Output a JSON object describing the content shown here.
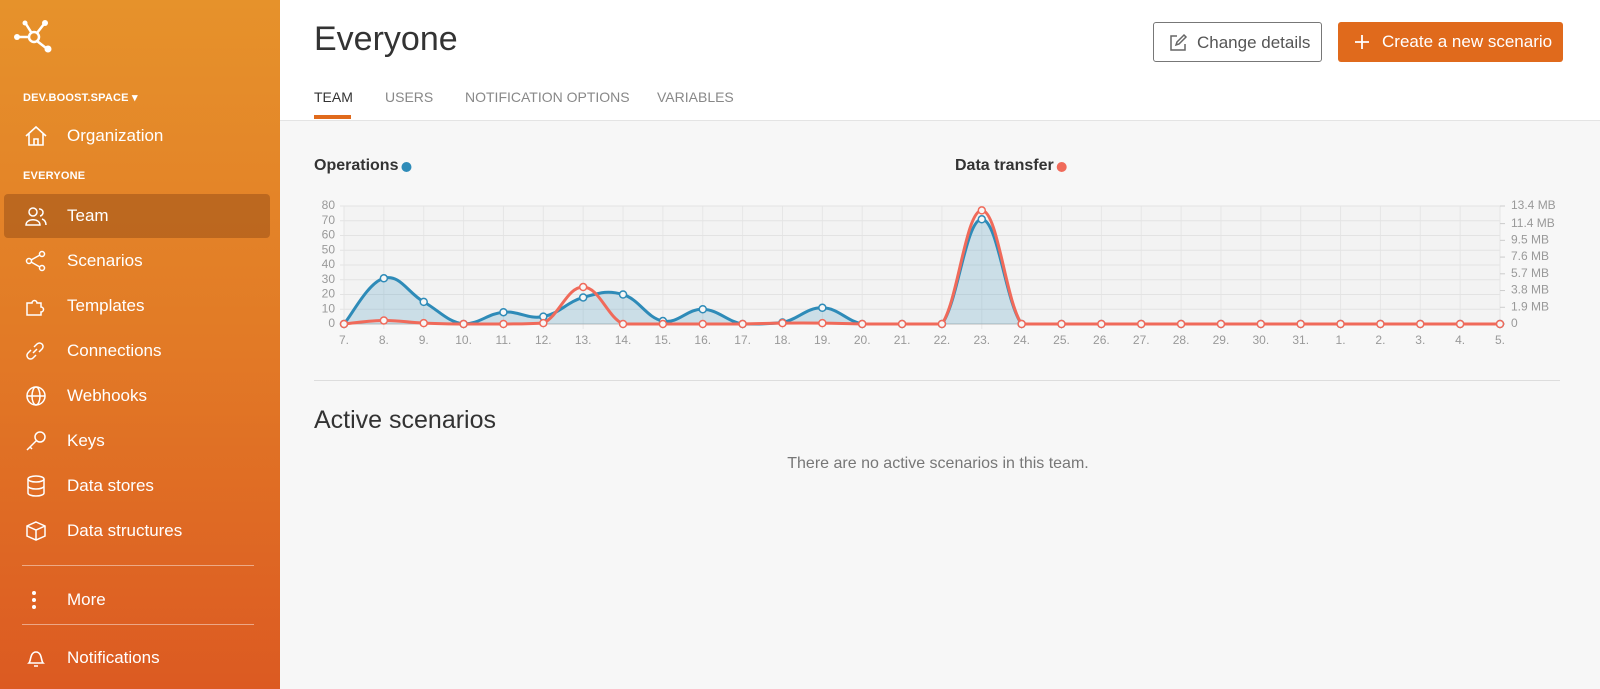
{
  "sidebar": {
    "org": "DEV.BOOST.SPACE",
    "org_items": [
      "Organization"
    ],
    "section": "EVERYONE",
    "nav": [
      "Team",
      "Scenarios",
      "Templates",
      "Connections",
      "Webhooks",
      "Keys",
      "Data stores",
      "Data structures"
    ],
    "more": "More",
    "notifications": "Notifications"
  },
  "header": {
    "title": "Everyone",
    "buttons": [
      "Change details",
      "Create a new scenario"
    ]
  },
  "tabs": [
    "TEAM",
    "USERS",
    "NOTIFICATION OPTIONS",
    "VARIABLES"
  ],
  "chart_data": {
    "type": "line",
    "categories": [
      "7.",
      "8.",
      "9.",
      "10.",
      "11.",
      "12.",
      "13.",
      "14.",
      "15.",
      "16.",
      "17.",
      "18.",
      "19.",
      "20.",
      "21.",
      "22.",
      "23.",
      "24.",
      "25.",
      "26.",
      "27.",
      "28.",
      "29.",
      "30.",
      "31.",
      "1.",
      "2.",
      "3.",
      "4.",
      "5."
    ],
    "series": [
      {
        "name": "Operations",
        "color": "#2e8bb8",
        "values": [
          0,
          31,
          15,
          0,
          8,
          5,
          18,
          20,
          2,
          10,
          0,
          1,
          11,
          0,
          0,
          0,
          71,
          0,
          0,
          0,
          0,
          0,
          0,
          0,
          0,
          0,
          0,
          0,
          0,
          0
        ]
      },
      {
        "name": "Data transfer",
        "color": "#f06a5a",
        "axis": "y2",
        "values": [
          0,
          0.4,
          0.1,
          0,
          0,
          0.1,
          4.2,
          0,
          0,
          0,
          0,
          0.1,
          0.1,
          0,
          0,
          0,
          12.9,
          0,
          0,
          0,
          0,
          0,
          0,
          0,
          0,
          0,
          0,
          0,
          0,
          0
        ]
      }
    ],
    "ylim": [
      0,
      80
    ],
    "yticks": [
      0,
      10,
      20,
      30,
      40,
      50,
      60,
      70,
      80
    ],
    "y2lim": [
      0,
      13.4
    ],
    "y2ticks": [
      0,
      {
        "value": 1.9,
        "label": "1.9 MB"
      },
      {
        "value": 3.8,
        "label": "3.8 MB"
      },
      {
        "value": 5.7,
        "label": "5.7 MB"
      },
      {
        "value": 7.6,
        "label": "7.6 MB"
      },
      {
        "value": 9.5,
        "label": "9.5 MB"
      },
      {
        "value": 11.4,
        "label": "11.4 MB"
      },
      {
        "value": 13.4,
        "label": "13.4 MB"
      }
    ],
    "grid": true
  },
  "active": {
    "title": "Active scenarios",
    "empty": "There are no active scenarios in this team."
  }
}
